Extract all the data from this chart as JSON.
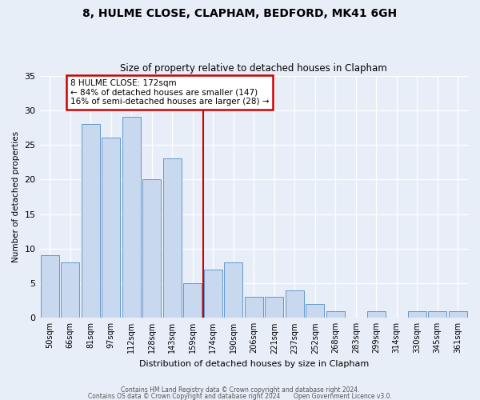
{
  "title1": "8, HULME CLOSE, CLAPHAM, BEDFORD, MK41 6GH",
  "title2": "Size of property relative to detached houses in Clapham",
  "xlabel": "Distribution of detached houses by size in Clapham",
  "ylabel": "Number of detached properties",
  "categories": [
    "50sqm",
    "66sqm",
    "81sqm",
    "97sqm",
    "112sqm",
    "128sqm",
    "143sqm",
    "159sqm",
    "174sqm",
    "190sqm",
    "206sqm",
    "221sqm",
    "237sqm",
    "252sqm",
    "268sqm",
    "283sqm",
    "299sqm",
    "314sqm",
    "330sqm",
    "345sqm",
    "361sqm"
  ],
  "values": [
    9,
    8,
    28,
    26,
    29,
    20,
    23,
    5,
    7,
    8,
    3,
    3,
    4,
    2,
    1,
    0,
    1,
    0,
    1,
    1,
    1
  ],
  "bar_color": "#c8d8ee",
  "bar_edge_color": "#6699cc",
  "vline_color": "#cc0000",
  "annotation_text": "8 HULME CLOSE: 172sqm\n← 84% of detached houses are smaller (147)\n16% of semi-detached houses are larger (28) →",
  "annotation_box_edge_color": "#cc0000",
  "ylim": [
    0,
    35
  ],
  "yticks": [
    0,
    5,
    10,
    15,
    20,
    25,
    30,
    35
  ],
  "background_color": "#e8eef8",
  "plot_bg_color": "#e8eef8",
  "footer1": "Contains HM Land Registry data © Crown copyright and database right 2024.",
  "footer2": "Contains OS data © Crown Copyright and database right 2024       Open Government Licence v3.0."
}
